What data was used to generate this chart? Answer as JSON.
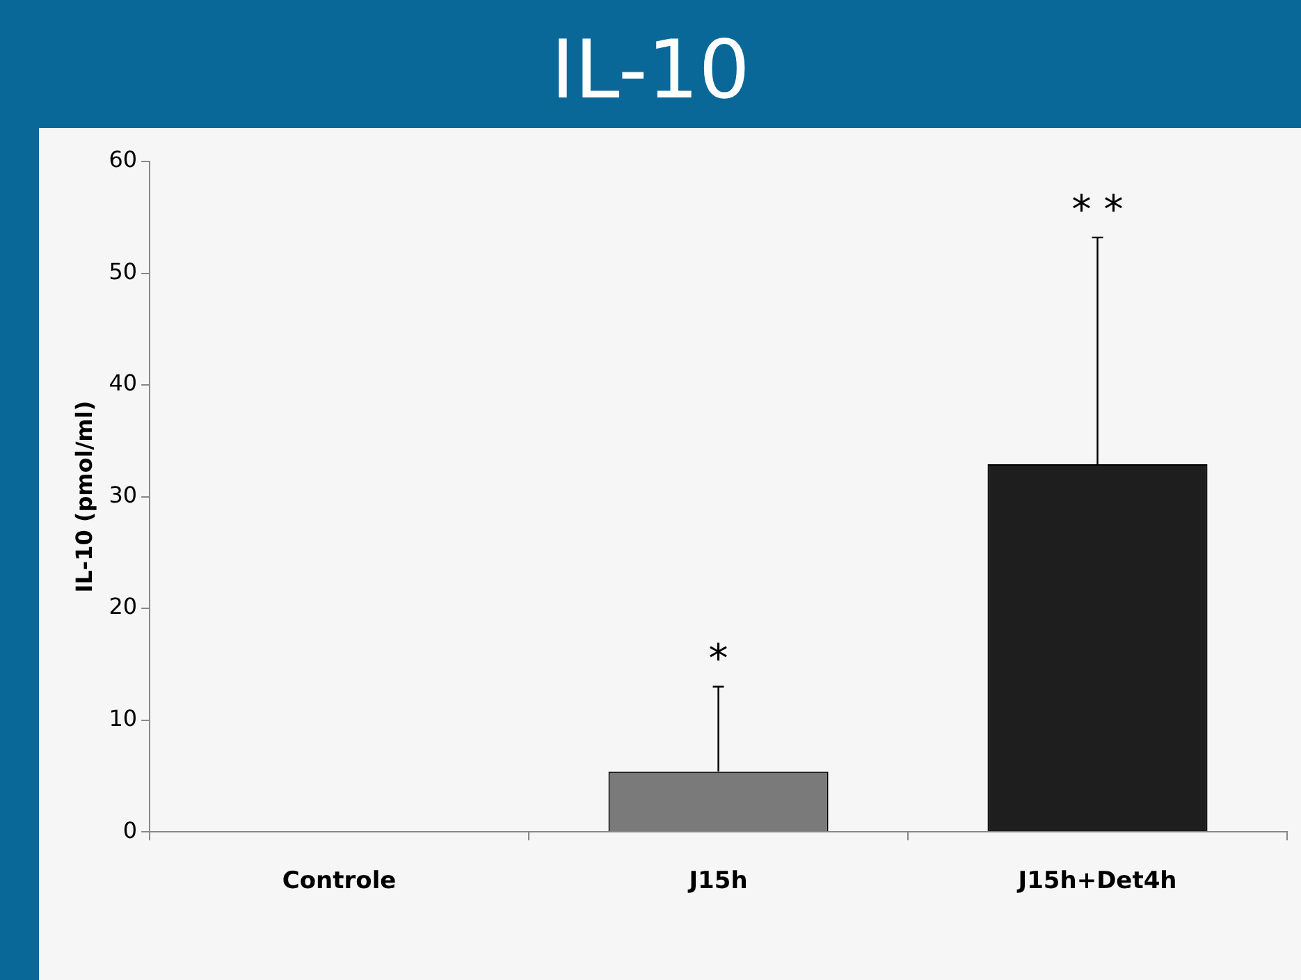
{
  "chart_data": {
    "type": "bar",
    "title": "IL-10",
    "ylabel": "IL-10 (pmol/ml)",
    "categories": [
      "Controle",
      "J15h",
      "J15h+Det4h"
    ],
    "values": [
      0,
      5.4,
      32.9
    ],
    "colors": [
      "#d0d0d0",
      "#7a7a7a",
      "#1e1e1e"
    ],
    "errors": [
      null,
      [
        5.4,
        13
      ],
      [
        32.9,
        53.2
      ]
    ],
    "ylim": [
      0,
      60
    ],
    "yticks": [
      0,
      10,
      20,
      30,
      40,
      50,
      60
    ],
    "annotations": [
      "*",
      "* *"
    ],
    "grid": false,
    "legend": false
  }
}
